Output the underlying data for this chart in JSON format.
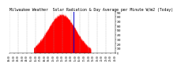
{
  "title": "Milwaukee Weather  Solar Radiation & Day Average per Minute W/m2 (Today)",
  "title_fontsize": 3.5,
  "background_color": "#ffffff",
  "plot_bg_color": "#ffffff",
  "bar_color": "#ff0000",
  "line_color": "#0000cc",
  "grid_color": "#999999",
  "ylim": [
    0,
    900
  ],
  "xlim": [
    0,
    1440
  ],
  "current_time_x": 870,
  "num_points": 1440,
  "peak_time": 710,
  "peak_value": 850,
  "sigma": 190,
  "daylight_start": 330,
  "daylight_end": 1110
}
